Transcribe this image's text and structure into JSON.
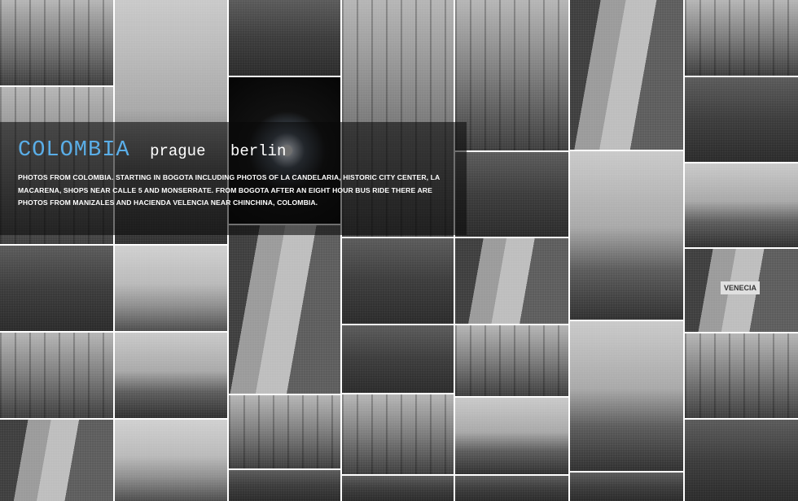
{
  "gallery": {
    "name": "colombia",
    "photo_count": 44
  },
  "nav": {
    "current": "COLOMBIA",
    "links": [
      "prague",
      "berlin"
    ],
    "current_color": "#5aaee8"
  },
  "description": "PHOTOS FROM COLOMBIA. STARTING IN BOGOTA INCLUDING PHOTOS OF LA CANDELARIA, HISTORIC CITY CENTER, LA MACARENA, SHOPS NEAR CALLE 5 AND MONSERRATE. FROM BOGOTA AFTER AN EIGHT HOUR BUS RIDE THERE ARE PHOTOS FROM MANIZALES AND HACIENDA VELENCIA NEAR CHINCHINA, COLOMBIA.",
  "signs": {
    "venecia": "VENECIA"
  }
}
